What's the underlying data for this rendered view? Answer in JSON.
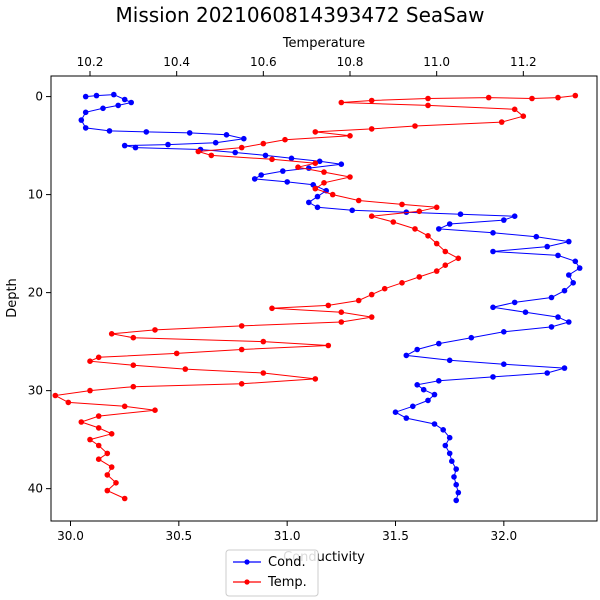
{
  "chart_data": {
    "type": "scatter",
    "title": "Mission 2021060814393472 SeaSaw",
    "ylabel": "Depth",
    "y_inverted": true,
    "ylim": [
      43.3,
      -2.1
    ],
    "yticks": [
      0,
      10,
      20,
      30,
      40
    ],
    "bottom_axis": {
      "label": "Conductivity",
      "range": [
        29.91,
        32.43
      ],
      "ticks": [
        "30.0",
        "30.5",
        "31.0",
        "31.5",
        "32.0"
      ],
      "tick_values": [
        30.0,
        30.5,
        31.0,
        31.5,
        32.0
      ]
    },
    "top_axis": {
      "label": "Temperature",
      "range": [
        10.11,
        11.37
      ],
      "ticks": [
        "10.2",
        "10.4",
        "10.6",
        "10.8",
        "11.0",
        "11.2"
      ],
      "tick_values": [
        10.2,
        10.4,
        10.6,
        10.8,
        11.0,
        11.2
      ]
    },
    "legend_position": "bottom-center",
    "series": [
      {
        "name": "Cond.",
        "axis": "bottom",
        "color": "#0000ff",
        "points": [
          [
            30.07,
            0.0
          ],
          [
            30.12,
            -0.1
          ],
          [
            30.2,
            -0.2
          ],
          [
            30.25,
            0.3
          ],
          [
            30.28,
            0.6
          ],
          [
            30.22,
            0.9
          ],
          [
            30.15,
            1.2
          ],
          [
            30.07,
            1.6
          ],
          [
            30.05,
            2.4
          ],
          [
            30.07,
            3.2
          ],
          [
            30.18,
            3.5
          ],
          [
            30.35,
            3.6
          ],
          [
            30.55,
            3.7
          ],
          [
            30.72,
            3.9
          ],
          [
            30.8,
            4.3
          ],
          [
            30.67,
            4.7
          ],
          [
            30.45,
            4.9
          ],
          [
            30.25,
            5.0
          ],
          [
            30.3,
            5.2
          ],
          [
            30.6,
            5.4
          ],
          [
            30.76,
            5.7
          ],
          [
            30.9,
            6.0
          ],
          [
            31.02,
            6.3
          ],
          [
            31.15,
            6.6
          ],
          [
            31.25,
            6.9
          ],
          [
            31.1,
            7.3
          ],
          [
            30.98,
            7.6
          ],
          [
            30.88,
            8.0
          ],
          [
            30.85,
            8.4
          ],
          [
            31.0,
            8.7
          ],
          [
            31.12,
            9.0
          ],
          [
            31.18,
            9.6
          ],
          [
            31.14,
            10.2
          ],
          [
            31.1,
            10.8
          ],
          [
            31.14,
            11.3
          ],
          [
            31.3,
            11.6
          ],
          [
            31.55,
            11.8
          ],
          [
            31.8,
            12.0
          ],
          [
            32.05,
            12.2
          ],
          [
            32.0,
            12.6
          ],
          [
            31.75,
            13.0
          ],
          [
            31.7,
            13.5
          ],
          [
            31.95,
            13.9
          ],
          [
            32.15,
            14.3
          ],
          [
            32.3,
            14.8
          ],
          [
            32.2,
            15.3
          ],
          [
            31.95,
            15.8
          ],
          [
            32.25,
            16.2
          ],
          [
            32.33,
            16.8
          ],
          [
            32.35,
            17.5
          ],
          [
            32.3,
            18.2
          ],
          [
            32.32,
            19.0
          ],
          [
            32.28,
            19.8
          ],
          [
            32.22,
            20.5
          ],
          [
            32.05,
            21.0
          ],
          [
            31.95,
            21.5
          ],
          [
            32.1,
            22.0
          ],
          [
            32.25,
            22.5
          ],
          [
            32.3,
            23.0
          ],
          [
            32.22,
            23.5
          ],
          [
            32.0,
            24.0
          ],
          [
            31.85,
            24.6
          ],
          [
            31.7,
            25.2
          ],
          [
            31.6,
            25.8
          ],
          [
            31.55,
            26.4
          ],
          [
            31.75,
            26.9
          ],
          [
            32.0,
            27.3
          ],
          [
            32.28,
            27.7
          ],
          [
            32.2,
            28.2
          ],
          [
            31.95,
            28.6
          ],
          [
            31.7,
            29.0
          ],
          [
            31.6,
            29.4
          ],
          [
            31.63,
            29.9
          ],
          [
            31.68,
            30.4
          ],
          [
            31.65,
            31.0
          ],
          [
            31.58,
            31.6
          ],
          [
            31.5,
            32.2
          ],
          [
            31.55,
            32.8
          ],
          [
            31.68,
            33.4
          ],
          [
            31.72,
            34.0
          ],
          [
            31.75,
            34.8
          ],
          [
            31.73,
            35.6
          ],
          [
            31.75,
            36.4
          ],
          [
            31.76,
            37.2
          ],
          [
            31.78,
            38.0
          ],
          [
            31.77,
            38.8
          ],
          [
            31.78,
            39.6
          ],
          [
            31.79,
            40.4
          ],
          [
            31.78,
            41.2
          ]
        ]
      },
      {
        "name": "Temp.",
        "axis": "top",
        "color": "#ff0000",
        "points": [
          [
            11.32,
            -0.1
          ],
          [
            11.28,
            0.1
          ],
          [
            11.22,
            0.2
          ],
          [
            11.12,
            0.1
          ],
          [
            10.98,
            0.2
          ],
          [
            10.85,
            0.4
          ],
          [
            10.78,
            0.6
          ],
          [
            10.98,
            0.9
          ],
          [
            11.18,
            1.3
          ],
          [
            11.2,
            2.0
          ],
          [
            11.15,
            2.6
          ],
          [
            10.95,
            3.0
          ],
          [
            10.85,
            3.3
          ],
          [
            10.72,
            3.6
          ],
          [
            10.8,
            4.0
          ],
          [
            10.65,
            4.4
          ],
          [
            10.6,
            4.8
          ],
          [
            10.55,
            5.2
          ],
          [
            10.45,
            5.6
          ],
          [
            10.48,
            6.0
          ],
          [
            10.62,
            6.4
          ],
          [
            10.72,
            6.8
          ],
          [
            10.68,
            7.2
          ],
          [
            10.74,
            7.7
          ],
          [
            10.8,
            8.2
          ],
          [
            10.74,
            8.8
          ],
          [
            10.72,
            9.4
          ],
          [
            10.76,
            10.0
          ],
          [
            10.82,
            10.6
          ],
          [
            10.92,
            11.0
          ],
          [
            11.0,
            11.3
          ],
          [
            10.96,
            11.7
          ],
          [
            10.85,
            12.2
          ],
          [
            10.9,
            12.8
          ],
          [
            10.95,
            13.5
          ],
          [
            10.98,
            14.2
          ],
          [
            11.0,
            15.0
          ],
          [
            11.02,
            15.8
          ],
          [
            11.05,
            16.5
          ],
          [
            11.02,
            17.2
          ],
          [
            11.0,
            17.8
          ],
          [
            10.96,
            18.4
          ],
          [
            10.92,
            19.0
          ],
          [
            10.88,
            19.6
          ],
          [
            10.85,
            20.2
          ],
          [
            10.82,
            20.8
          ],
          [
            10.75,
            21.3
          ],
          [
            10.62,
            21.6
          ],
          [
            10.78,
            22.0
          ],
          [
            10.85,
            22.5
          ],
          [
            10.78,
            23.0
          ],
          [
            10.55,
            23.4
          ],
          [
            10.35,
            23.8
          ],
          [
            10.25,
            24.2
          ],
          [
            10.3,
            24.6
          ],
          [
            10.6,
            25.0
          ],
          [
            10.75,
            25.4
          ],
          [
            10.55,
            25.8
          ],
          [
            10.4,
            26.2
          ],
          [
            10.22,
            26.6
          ],
          [
            10.2,
            27.0
          ],
          [
            10.3,
            27.4
          ],
          [
            10.42,
            27.8
          ],
          [
            10.6,
            28.2
          ],
          [
            10.72,
            28.8
          ],
          [
            10.55,
            29.3
          ],
          [
            10.3,
            29.6
          ],
          [
            10.2,
            30.0
          ],
          [
            10.12,
            30.5
          ],
          [
            10.15,
            31.2
          ],
          [
            10.28,
            31.6
          ],
          [
            10.35,
            32.0
          ],
          [
            10.22,
            32.6
          ],
          [
            10.18,
            33.2
          ],
          [
            10.22,
            33.8
          ],
          [
            10.25,
            34.4
          ],
          [
            10.2,
            35.0
          ],
          [
            10.22,
            35.6
          ],
          [
            10.24,
            36.4
          ],
          [
            10.22,
            37.0
          ],
          [
            10.25,
            37.8
          ],
          [
            10.24,
            38.6
          ],
          [
            10.26,
            39.4
          ],
          [
            10.24,
            40.2
          ],
          [
            10.28,
            41.0
          ]
        ]
      }
    ]
  }
}
